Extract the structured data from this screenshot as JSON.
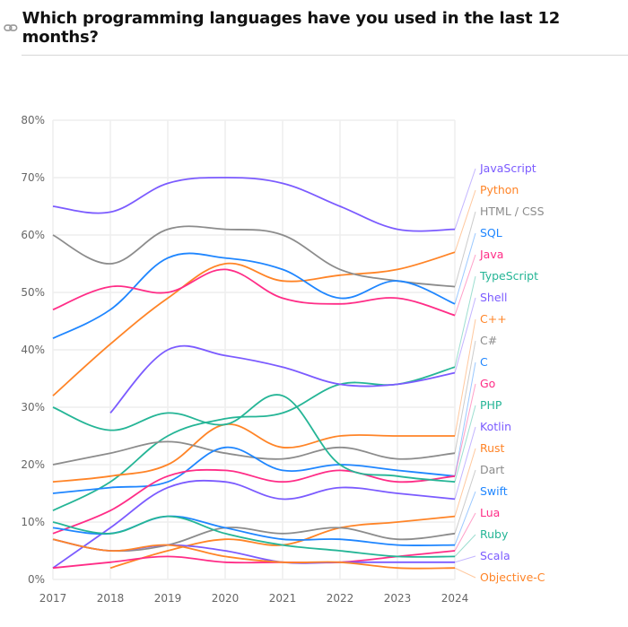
{
  "header": {
    "title": "Which programming languages have you used in the last 12 months?",
    "icon": "link-icon"
  },
  "chart_data": {
    "type": "line",
    "title": "Which programming languages have you used in the last 12 months?",
    "x": [
      2017,
      2018,
      2019,
      2020,
      2021,
      2022,
      2023,
      2024
    ],
    "y_ticks": [
      "0%",
      "10%",
      "20%",
      "30%",
      "40%",
      "50%",
      "60%",
      "70%",
      "80%"
    ],
    "ylim": [
      0,
      80
    ],
    "grid": true,
    "legend": "right (end labels)",
    "series": [
      {
        "name": "JavaScript",
        "color": "#7b5bff",
        "values": [
          65,
          64,
          69,
          70,
          69,
          65,
          61,
          61
        ]
      },
      {
        "name": "Python",
        "color": "#ff8427",
        "values": [
          32,
          41,
          49,
          55,
          52,
          53,
          54,
          57
        ]
      },
      {
        "name": "HTML / CSS",
        "color": "#8c8c8c",
        "values": [
          60,
          55,
          61,
          61,
          60,
          54,
          52,
          51
        ]
      },
      {
        "name": "SQL",
        "color": "#1f86ff",
        "values": [
          42,
          47,
          56,
          56,
          54,
          49,
          52,
          48
        ]
      },
      {
        "name": "Java",
        "color": "#ff2d87",
        "values": [
          47,
          51,
          50,
          54,
          49,
          48,
          49,
          46
        ]
      },
      {
        "name": "TypeScript",
        "color": "#25b596",
        "values": [
          12,
          17,
          25,
          28,
          29,
          34,
          34,
          37
        ]
      },
      {
        "name": "Shell",
        "color": "#7b5bff",
        "values": [
          null,
          29,
          40,
          39,
          37,
          34,
          34,
          36
        ]
      },
      {
        "name": "C++",
        "color": "#ff8427",
        "values": [
          17,
          18,
          20,
          27,
          23,
          25,
          25,
          25
        ]
      },
      {
        "name": "C#",
        "color": "#8c8c8c",
        "values": [
          20,
          22,
          24,
          22,
          21,
          23,
          21,
          22
        ]
      },
      {
        "name": "C",
        "color": "#1f86ff",
        "values": [
          15,
          16,
          17,
          23,
          19,
          20,
          19,
          18
        ]
      },
      {
        "name": "Go",
        "color": "#ff2d87",
        "values": [
          8,
          12,
          18,
          19,
          17,
          19,
          17,
          18
        ]
      },
      {
        "name": "PHP",
        "color": "#25b596",
        "values": [
          30,
          26,
          29,
          27,
          32,
          20,
          18,
          17
        ]
      },
      {
        "name": "Kotlin",
        "color": "#7b5bff",
        "values": [
          2,
          9,
          16,
          17,
          14,
          16,
          15,
          14
        ]
      },
      {
        "name": "Rust",
        "color": "#ff8427",
        "values": [
          null,
          2,
          5,
          7,
          6,
          9,
          10,
          11
        ]
      },
      {
        "name": "Dart",
        "color": "#8c8c8c",
        "values": [
          7,
          5,
          6,
          9,
          8,
          9,
          7,
          8
        ]
      },
      {
        "name": "Swift",
        "color": "#1f86ff",
        "values": [
          9,
          8,
          11,
          9,
          7,
          7,
          6,
          6
        ]
      },
      {
        "name": "Lua",
        "color": "#ff2d87",
        "values": [
          2,
          3,
          4,
          3,
          3,
          3,
          4,
          5
        ]
      },
      {
        "name": "Ruby",
        "color": "#25b596",
        "values": [
          10,
          8,
          11,
          8,
          6,
          5,
          4,
          4
        ]
      },
      {
        "name": "Scala",
        "color": "#7b5bff",
        "values": [
          7,
          5,
          6,
          5,
          3,
          3,
          3,
          3
        ]
      },
      {
        "name": "Objective-C",
        "color": "#ff8427",
        "values": [
          7,
          5,
          6,
          4,
          3,
          3,
          2,
          2
        ]
      }
    ]
  }
}
